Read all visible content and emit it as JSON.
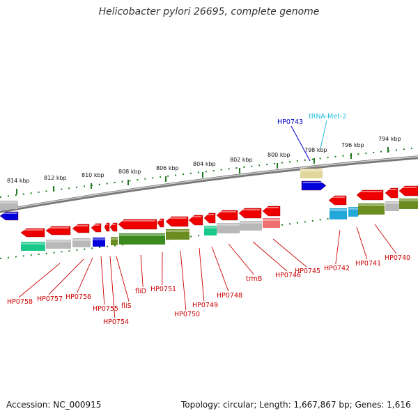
{
  "title": "Helicobacter pylori 26695, complete genome",
  "footer": {
    "accession": "Accession: NC_000915",
    "summary": "Topology: circular; Length: 1,667,867 bp; Genes: 1,616"
  },
  "colors": {
    "gene_red": "#ee0000",
    "cds_green": "#3a8a1e",
    "olive": "#6b8c20",
    "teal": "#19c98a",
    "gray": "#b8b8b8",
    "blue": "#0000dd",
    "label_red": "#cc0000",
    "label_blue": "#0000cc",
    "label_cyan": "#22bbdd",
    "tick_green": "#1f7a1f"
  },
  "ruler_labels": [
    "814 kbp",
    "812 kbp",
    "810 kbp",
    "808 kbp",
    "806 kbp",
    "804 kbp",
    "802 kbp",
    "800 kbp",
    "798 kbp",
    "796 kbp",
    "794 kbp"
  ],
  "top_labels": [
    {
      "text": "HP0743",
      "color": "blue"
    },
    {
      "text": "tRNA-Met-2",
      "color": "cyan"
    }
  ],
  "gene_labels": [
    "HP0758",
    "HP0757",
    "HP0756",
    "HP0755",
    "HP0754",
    "fliS",
    "fliD",
    "HP0751",
    "HP0750",
    "HP0749",
    "HP0748",
    "trmB",
    "HP0746",
    "HP0745",
    "HP0742",
    "HP0741",
    "HP0740"
  ]
}
